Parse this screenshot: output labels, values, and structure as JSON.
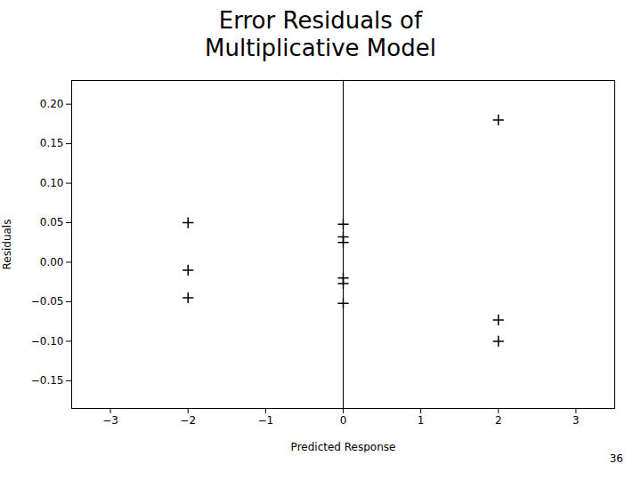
{
  "chart_data": {
    "type": "scatter",
    "title": "Error Residuals of\nMultiplicative Model",
    "caption": "36",
    "x_label": "Predicted Response",
    "y_label": "Residuals",
    "x": [
      -2.0,
      -2.0,
      -2.0,
      0.0,
      0.0,
      0.0,
      0.0,
      0.0,
      0.0,
      2.0,
      2.0,
      2.0
    ],
    "values": [
      0.05,
      -0.01,
      -0.045,
      0.048,
      0.032,
      0.025,
      -0.02,
      -0.027,
      -0.052,
      0.18,
      -0.073,
      -0.1
    ],
    "color": "#000000",
    "marker": "plus",
    "vline": {
      "x": 0.0,
      "color": "#000000"
    },
    "xlim": [
      -3.5,
      3.5
    ],
    "ylim": [
      -0.185,
      0.23
    ],
    "xticks": [
      {
        "value": -3,
        "label": "−3"
      },
      {
        "value": -2,
        "label": "−2"
      },
      {
        "value": -1,
        "label": "−1"
      },
      0,
      1,
      2,
      3
    ],
    "yticks": [
      {
        "value": -0.15,
        "label": "−0.15"
      },
      {
        "value": -0.1,
        "label": "−0.10"
      },
      {
        "value": -0.05,
        "label": "−0.05"
      },
      {
        "value": 0.0,
        "label": "0.00"
      },
      0.05,
      {
        "value": 0.1,
        "label": "0.10"
      },
      0.15,
      {
        "value": 0.2,
        "label": "0.20"
      }
    ],
    "grid": false
  }
}
